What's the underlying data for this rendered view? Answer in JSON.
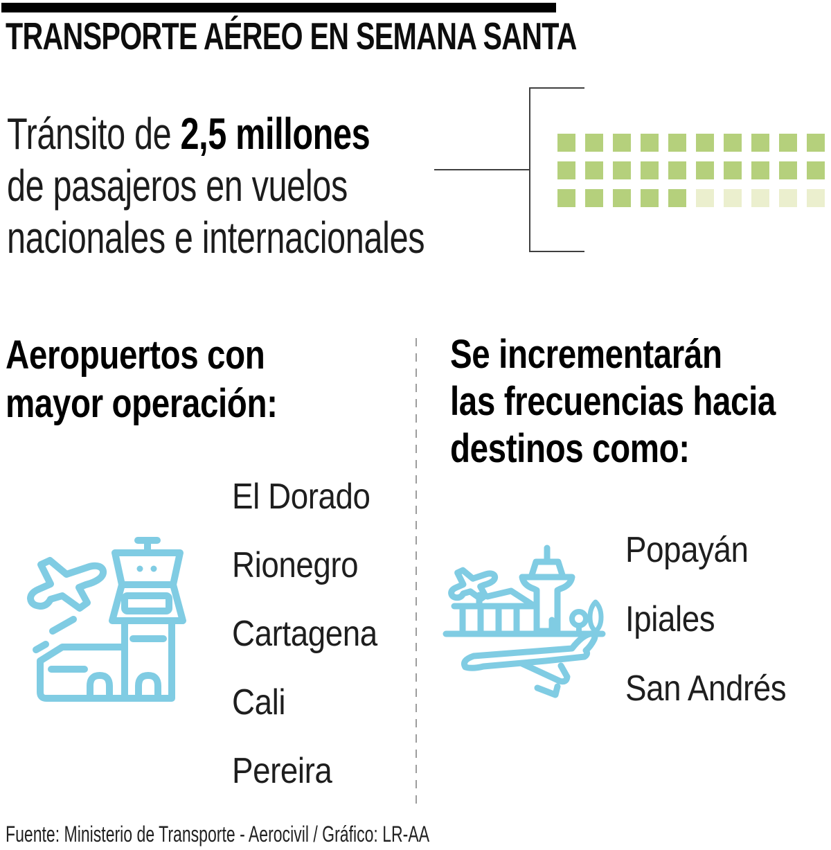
{
  "header": {
    "title": "TRANSPORTE AÉREO EN SEMANA SANTA"
  },
  "lead": {
    "prefix": "Tránsito de ",
    "highlight": "2,5 millones",
    "line2": "de pasajeros en vuelos",
    "line3": "nacionales e internacionales"
  },
  "passenger_grid": {
    "rows": 3,
    "cols": 10,
    "filled": 25,
    "total": 30,
    "filled_color": "#b5d07c",
    "faded_color": "#ebefce"
  },
  "sections": {
    "left": {
      "heading_lines": [
        "Aeropuertos con",
        "mayor operación:"
      ],
      "items": [
        "El Dorado",
        "Rionegro",
        "Cartagena",
        "Cali",
        "Pereira"
      ]
    },
    "right": {
      "heading_lines": [
        "Se incrementarán",
        "las frecuencias hacia",
        "destinos como:"
      ],
      "items": [
        "Popayán",
        "Ipiales",
        "San Andrés"
      ]
    }
  },
  "footer": {
    "source": "Fuente: Ministerio de Transporte - Aerocivil / Gráfico: LR-AA"
  },
  "colors": {
    "accent_green": "#b5d07c",
    "accent_green_faded": "#ebefce",
    "icon_blue": "#80cce3"
  }
}
